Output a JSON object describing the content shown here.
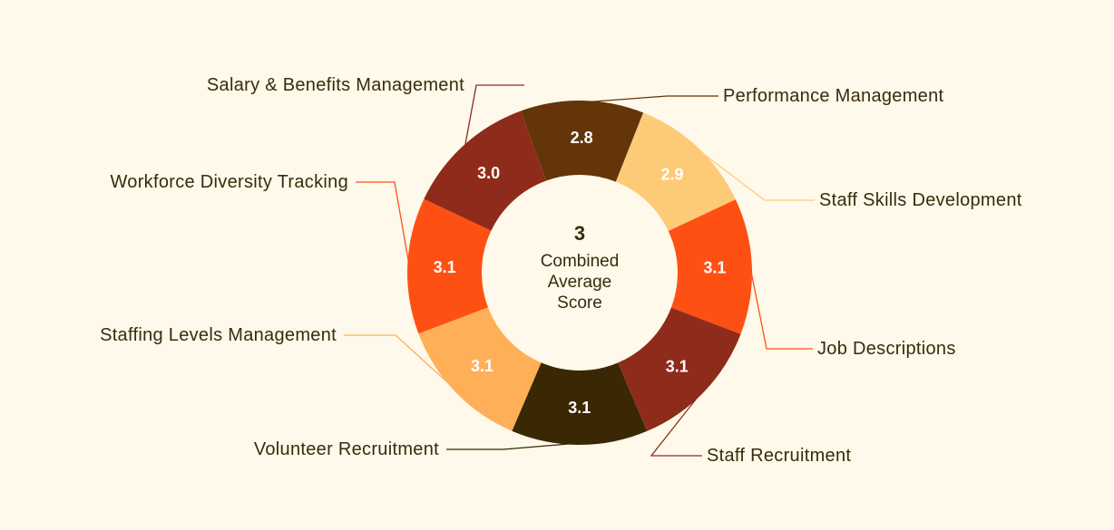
{
  "chart_data": {
    "type": "pie",
    "variant": "donut",
    "center": {
      "value": "3",
      "lines": [
        "Combined",
        "Average",
        "Score"
      ]
    },
    "slices": [
      {
        "label": "Performance Management",
        "value": 2.8,
        "display": "2.8",
        "color": "#633508"
      },
      {
        "label": "Staff Skills Development",
        "value": 2.9,
        "display": "2.9",
        "color": "#FDCB77"
      },
      {
        "label": "Job Descriptions",
        "value": 3.1,
        "display": "3.1",
        "color": "#FF5014"
      },
      {
        "label": "Staff Recruitment",
        "value": 3.1,
        "display": "3.1",
        "color": "#8E2B1A"
      },
      {
        "label": "Volunteer Recruitment",
        "value": 3.1,
        "display": "3.1",
        "color": "#3A2703"
      },
      {
        "label": "Staffing Levels Management",
        "value": 3.1,
        "display": "3.1",
        "color": "#FEAF57"
      },
      {
        "label": "Workforce Diversity Tracking",
        "value": 3.1,
        "display": "3.1",
        "color": "#FF5014"
      },
      {
        "label": "Salary & Benefits Management",
        "value": 3.0,
        "display": "3.0",
        "color": "#8E2B1A"
      }
    ]
  }
}
